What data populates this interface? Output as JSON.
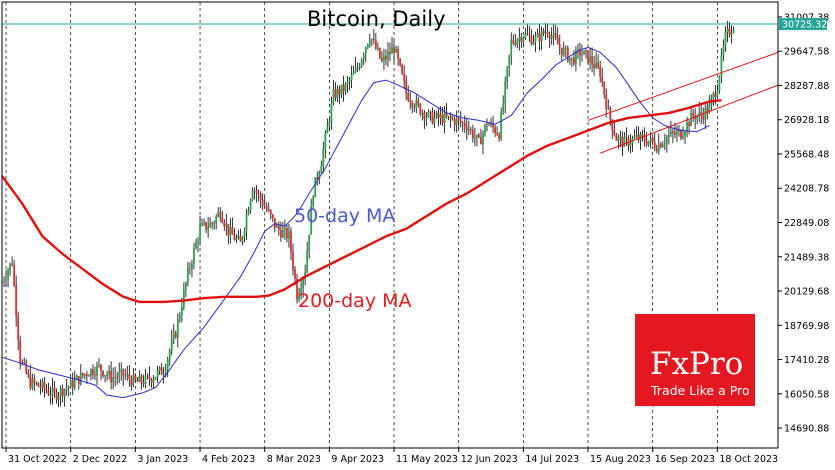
{
  "chart_data": {
    "type": "candlestick",
    "title": "Bitcoin, Daily",
    "x_tick_labels": [
      "31 Oct 2022",
      "2 Dec 2022",
      "3 Jan 2023",
      "4 Feb 2023",
      "8 Mar 2023",
      "9 Apr 2023",
      "11 May 2023",
      "12 Jun 2023",
      "14 Jul 2023",
      "15 Aug 2023",
      "16 Sep 2023",
      "18 Oct 2023"
    ],
    "y_tick_labels": [
      "31007.38",
      "29647.58",
      "28287.88",
      "26928.18",
      "25568.48",
      "24208.78",
      "22849.08",
      "21489.38",
      "20129.68",
      "18769.98",
      "17410.28",
      "16050.58",
      "14690.88"
    ],
    "ylim": [
      13900,
      31600
    ],
    "xlim_days": [
      0,
      384
    ],
    "current_price": {
      "value": 30725.32,
      "label": "30725.32",
      "color": "#26a69a"
    },
    "annotations": [
      {
        "text": "50-day MA",
        "color": "#4b5bc7"
      },
      {
        "text": "200-day MA",
        "color": "#e02020"
      }
    ],
    "series": [
      {
        "name": "50-day MA",
        "color": "#2b2bcc",
        "points": [
          [
            0,
            17500
          ],
          [
            8,
            17300
          ],
          [
            18,
            17000
          ],
          [
            28,
            16800
          ],
          [
            38,
            16600
          ],
          [
            46,
            16400
          ],
          [
            52,
            16000
          ],
          [
            60,
            15900
          ],
          [
            65,
            16000
          ],
          [
            70,
            16100
          ],
          [
            76,
            16300
          ],
          [
            82,
            16900
          ],
          [
            90,
            17800
          ],
          [
            100,
            18700
          ],
          [
            110,
            19800
          ],
          [
            118,
            20700
          ],
          [
            125,
            21700
          ],
          [
            130,
            22500
          ],
          [
            135,
            22800
          ],
          [
            140,
            22700
          ],
          [
            146,
            23200
          ],
          [
            152,
            24000
          ],
          [
            160,
            25000
          ],
          [
            168,
            26200
          ],
          [
            172,
            26800
          ],
          [
            178,
            27700
          ],
          [
            184,
            28400
          ],
          [
            190,
            28500
          ],
          [
            196,
            28300
          ],
          [
            204,
            28000
          ],
          [
            212,
            27600
          ],
          [
            220,
            27200
          ],
          [
            228,
            27000
          ],
          [
            236,
            26900
          ],
          [
            244,
            26750
          ],
          [
            252,
            27100
          ],
          [
            260,
            28000
          ],
          [
            268,
            28600
          ],
          [
            274,
            29100
          ],
          [
            280,
            29400
          ],
          [
            286,
            29700
          ],
          [
            290,
            29800
          ],
          [
            296,
            29600
          ],
          [
            304,
            29000
          ],
          [
            310,
            28300
          ],
          [
            316,
            27600
          ],
          [
            322,
            27000
          ],
          [
            328,
            26700
          ],
          [
            336,
            26500
          ],
          [
            344,
            26450
          ],
          [
            350,
            26700
          ]
        ]
      },
      {
        "name": "200-day MA",
        "color": "#e01010",
        "points": [
          [
            0,
            24700
          ],
          [
            10,
            23600
          ],
          [
            20,
            22300
          ],
          [
            30,
            21600
          ],
          [
            40,
            21000
          ],
          [
            50,
            20400
          ],
          [
            60,
            19900
          ],
          [
            68,
            19700
          ],
          [
            80,
            19700
          ],
          [
            90,
            19750
          ],
          [
            100,
            19850
          ],
          [
            110,
            19900
          ],
          [
            120,
            19900
          ],
          [
            126,
            19900
          ],
          [
            132,
            19950
          ],
          [
            140,
            20200
          ],
          [
            150,
            20700
          ],
          [
            160,
            21100
          ],
          [
            170,
            21500
          ],
          [
            180,
            21900
          ],
          [
            190,
            22300
          ],
          [
            200,
            22600
          ],
          [
            210,
            23100
          ],
          [
            220,
            23600
          ],
          [
            230,
            24000
          ],
          [
            240,
            24500
          ],
          [
            250,
            25000
          ],
          [
            260,
            25500
          ],
          [
            270,
            25900
          ],
          [
            280,
            26200
          ],
          [
            290,
            26500
          ],
          [
            300,
            26800
          ],
          [
            310,
            27000
          ],
          [
            320,
            27100
          ],
          [
            330,
            27200
          ],
          [
            340,
            27400
          ],
          [
            350,
            27650
          ],
          [
            356,
            27700
          ]
        ]
      }
    ],
    "trend_lines": [
      {
        "name": "upper channel",
        "color": "#e01010",
        "from": [
          290,
          26900
        ],
        "to": [
          384,
          29600
        ]
      },
      {
        "name": "lower channel",
        "color": "#e01010",
        "from": [
          296,
          25600
        ],
        "to": [
          384,
          28300
        ]
      }
    ],
    "candles_key_points": [
      [
        0,
        20500
      ],
      [
        5,
        21300
      ],
      [
        9,
        17400
      ],
      [
        14,
        16500
      ],
      [
        20,
        16300
      ],
      [
        26,
        16000
      ],
      [
        34,
        16400
      ],
      [
        42,
        16900
      ],
      [
        48,
        17100
      ],
      [
        54,
        16700
      ],
      [
        60,
        16800
      ],
      [
        66,
        16500
      ],
      [
        72,
        16600
      ],
      [
        80,
        17000
      ],
      [
        86,
        18500
      ],
      [
        92,
        20800
      ],
      [
        98,
        22600
      ],
      [
        104,
        22800
      ],
      [
        108,
        23300
      ],
      [
        112,
        22500
      ],
      [
        118,
        22000
      ],
      [
        124,
        24300
      ],
      [
        130,
        23500
      ],
      [
        136,
        22600
      ],
      [
        142,
        22300
      ],
      [
        146,
        20000
      ],
      [
        150,
        21000
      ],
      [
        154,
        24100
      ],
      [
        158,
        25300
      ],
      [
        164,
        27900
      ],
      [
        170,
        28200
      ],
      [
        176,
        29000
      ],
      [
        182,
        30300
      ],
      [
        188,
        29200
      ],
      [
        194,
        29800
      ],
      [
        200,
        28000
      ],
      [
        206,
        27400
      ],
      [
        212,
        27000
      ],
      [
        218,
        27000
      ],
      [
        224,
        26900
      ],
      [
        230,
        26700
      ],
      [
        236,
        26000
      ],
      [
        240,
        26800
      ],
      [
        246,
        26400
      ],
      [
        252,
        30000
      ],
      [
        258,
        30300
      ],
      [
        264,
        30100
      ],
      [
        270,
        30500
      ],
      [
        276,
        29800
      ],
      [
        282,
        29300
      ],
      [
        286,
        29600
      ],
      [
        290,
        29400
      ],
      [
        296,
        28800
      ],
      [
        300,
        27200
      ],
      [
        304,
        26200
      ],
      [
        308,
        26000
      ],
      [
        314,
        26200
      ],
      [
        320,
        26100
      ],
      [
        324,
        25900
      ],
      [
        330,
        26300
      ],
      [
        336,
        26400
      ],
      [
        342,
        27100
      ],
      [
        346,
        27100
      ],
      [
        350,
        27400
      ],
      [
        354,
        28300
      ],
      [
        358,
        30200
      ],
      [
        362,
        30700
      ]
    ]
  }
}
